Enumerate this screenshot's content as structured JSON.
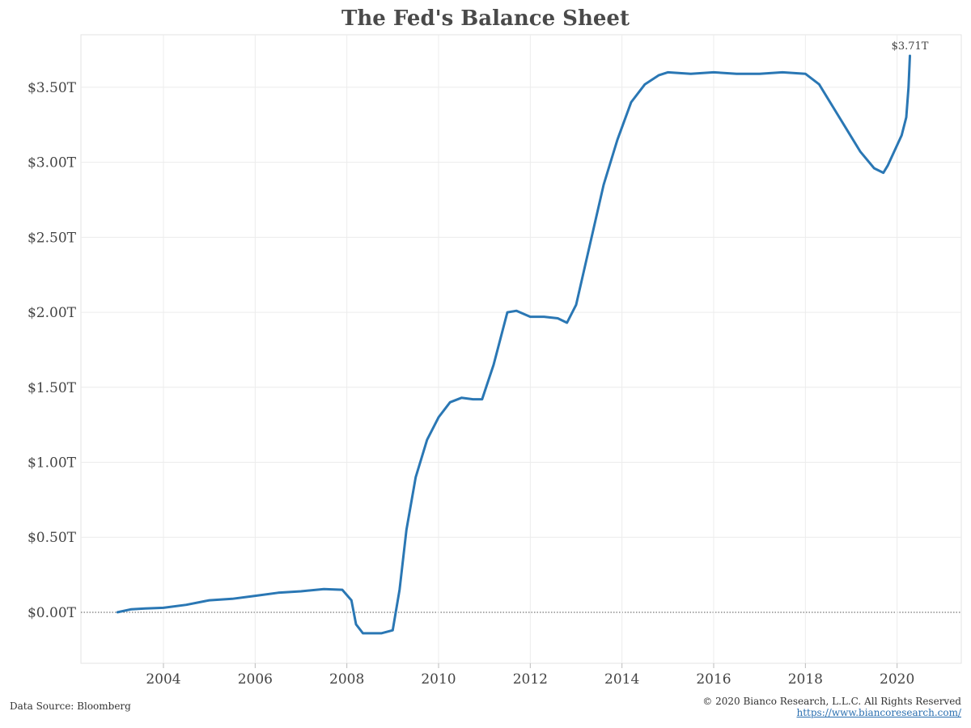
{
  "chart_data": {
    "type": "line",
    "title": "The Fed's Balance Sheet",
    "xlabel": "",
    "ylabel": "",
    "x_ticks": [
      "2004",
      "2006",
      "2008",
      "2010",
      "2012",
      "2014",
      "2016",
      "2018",
      "2020"
    ],
    "y_ticks": [
      "$0.00T",
      "$0.50T",
      "$1.00T",
      "$1.50T",
      "$2.00T",
      "$2.50T",
      "$3.00T",
      "$3.50T"
    ],
    "xlim": [
      2002.2,
      2021.4
    ],
    "ylim": [
      -0.34,
      3.85
    ],
    "grid": true,
    "zero_line": "dotted",
    "line_color": "#2a77b4",
    "end_label": "$3.71T",
    "series": [
      {
        "name": "",
        "x": [
          2003.0,
          2003.3,
          2003.6,
          2004.0,
          2004.5,
          2005.0,
          2005.5,
          2006.0,
          2006.5,
          2007.0,
          2007.5,
          2007.9,
          2008.1,
          2008.2,
          2008.35,
          2008.5,
          2008.75,
          2009.0,
          2009.15,
          2009.3,
          2009.5,
          2009.75,
          2010.0,
          2010.25,
          2010.5,
          2010.75,
          2010.95,
          2011.2,
          2011.5,
          2011.7,
          2012.0,
          2012.3,
          2012.6,
          2012.8,
          2013.0,
          2013.3,
          2013.6,
          2013.9,
          2014.2,
          2014.5,
          2014.8,
          2015.0,
          2015.5,
          2016.0,
          2016.5,
          2017.0,
          2017.5,
          2018.0,
          2018.3,
          2018.6,
          2018.9,
          2019.2,
          2019.5,
          2019.7,
          2019.8,
          2019.95,
          2020.1,
          2020.2,
          2020.25,
          2020.28
        ],
        "y": [
          0.0,
          0.02,
          0.025,
          0.03,
          0.05,
          0.08,
          0.09,
          0.11,
          0.13,
          0.14,
          0.155,
          0.15,
          0.08,
          -0.08,
          -0.14,
          -0.14,
          -0.14,
          -0.12,
          0.15,
          0.55,
          0.9,
          1.15,
          1.3,
          1.4,
          1.43,
          1.42,
          1.42,
          1.65,
          2.0,
          2.01,
          1.97,
          1.97,
          1.96,
          1.93,
          2.05,
          2.45,
          2.85,
          3.15,
          3.4,
          3.52,
          3.58,
          3.6,
          3.59,
          3.6,
          3.59,
          3.59,
          3.6,
          3.59,
          3.52,
          3.37,
          3.22,
          3.07,
          2.96,
          2.93,
          2.98,
          3.08,
          3.18,
          3.3,
          3.5,
          3.71
        ]
      }
    ]
  },
  "footer": {
    "source": "Data Source: Bloomberg",
    "copyright": "© 2020 Bianco Research, L.L.C. All Rights Reserved",
    "url": "https://www.biancoresearch.com/"
  }
}
